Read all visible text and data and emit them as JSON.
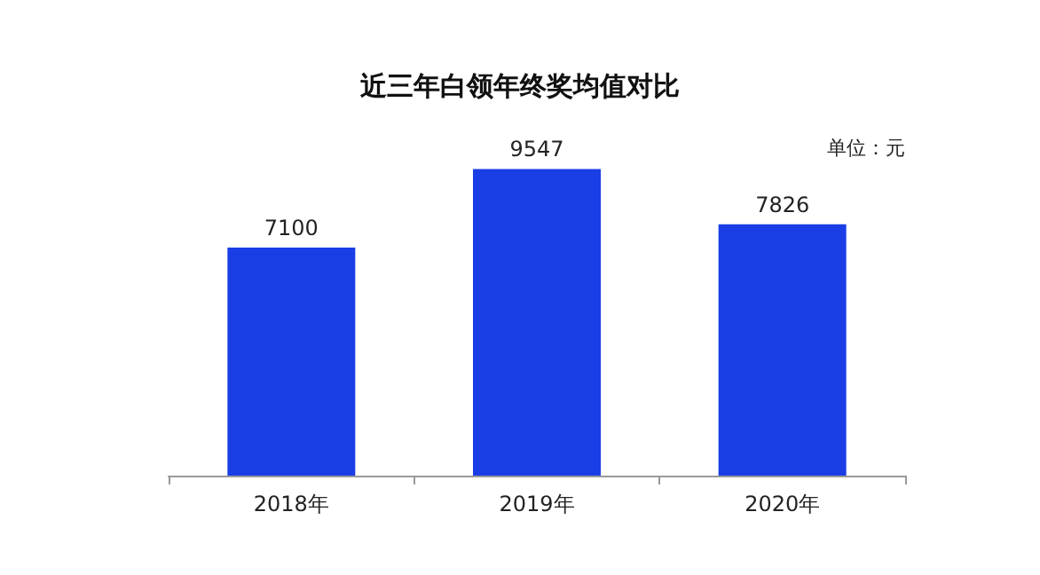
{
  "chart_data": {
    "type": "bar",
    "title": "近三年白领年终奖均值对比",
    "annotations": [
      "单位：元"
    ],
    "categories": [
      "2018年",
      "2019年",
      "2020年"
    ],
    "values": [
      7100,
      9547,
      7826
    ],
    "color": "#1a3ee6",
    "data_labels": true
  }
}
